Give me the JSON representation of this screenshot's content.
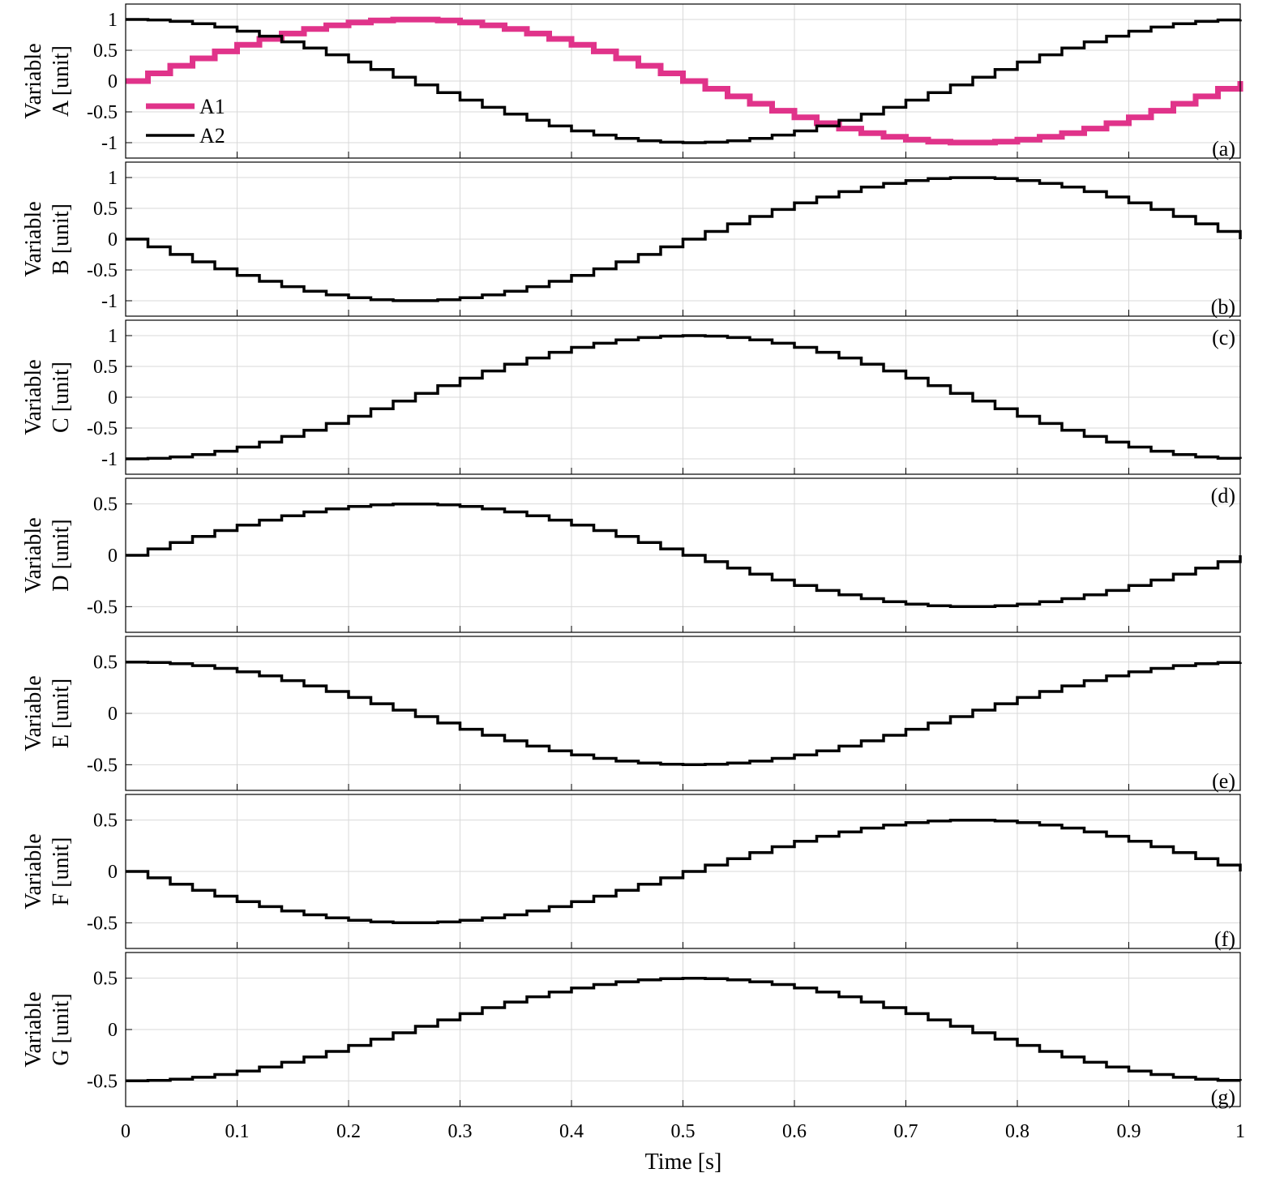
{
  "figure": {
    "xlabel": "Time [s]",
    "x_tick_labels": [
      "0",
      "0.1",
      "0.2",
      "0.3",
      "0.4",
      "0.5",
      "0.6",
      "0.7",
      "0.8",
      "0.9",
      "1"
    ]
  },
  "chart_data": [
    {
      "type": "line",
      "step": true,
      "panel_label": "(a)",
      "ylabel_line1": "Variable",
      "ylabel_line2": "A [unit]",
      "xlim": [
        0,
        1
      ],
      "ylim": [
        -1.25,
        1.25
      ],
      "y_tick_labels": [
        "1",
        "0.5",
        "0",
        "-0.5",
        "-1"
      ],
      "y_tick_values": [
        1,
        0.5,
        0,
        -0.5,
        -1
      ],
      "grid": true,
      "legend_placement": "center-left",
      "series": [
        {
          "name": "A1",
          "color": "#e0338a",
          "amplitude": 1,
          "waveform": "sine",
          "sample_period_s": 0.02
        },
        {
          "name": "A2",
          "color": "#000000",
          "amplitude": 1,
          "waveform": "cosine",
          "sample_period_s": 0.02
        }
      ]
    },
    {
      "type": "line",
      "step": true,
      "panel_label": "(b)",
      "ylabel_line1": "Variable",
      "ylabel_line2": "B [unit]",
      "xlim": [
        0,
        1
      ],
      "ylim": [
        -1.25,
        1.25
      ],
      "y_tick_labels": [
        "1",
        "0.5",
        "0",
        "-0.5",
        "-1"
      ],
      "y_tick_values": [
        1,
        0.5,
        0,
        -0.5,
        -1
      ],
      "grid": true,
      "series": [
        {
          "color": "#000000",
          "amplitude": 1,
          "waveform": "negative sine",
          "sample_period_s": 0.02
        }
      ]
    },
    {
      "type": "line",
      "step": true,
      "panel_label": "(c)",
      "ylabel_line1": "Variable",
      "ylabel_line2": "C [unit]",
      "xlim": [
        0,
        1
      ],
      "ylim": [
        -1.25,
        1.25
      ],
      "y_tick_labels": [
        "1",
        "0.5",
        "0",
        "-0.5",
        "-1"
      ],
      "y_tick_values": [
        1,
        0.5,
        0,
        -0.5,
        -1
      ],
      "grid": true,
      "series": [
        {
          "color": "#000000",
          "amplitude": 1,
          "waveform": "negative cosine",
          "sample_period_s": 0.02
        }
      ]
    },
    {
      "type": "line",
      "step": true,
      "panel_label": "(d)",
      "ylabel_line1": "Variable",
      "ylabel_line2": "D [unit]",
      "xlim": [
        0,
        1
      ],
      "ylim": [
        -0.75,
        0.75
      ],
      "y_tick_labels": [
        "0.5",
        "0",
        "-0.5"
      ],
      "y_tick_values": [
        0.5,
        0,
        -0.5
      ],
      "grid": true,
      "series": [
        {
          "color": "#000000",
          "amplitude": 0.5,
          "waveform": "sine",
          "sample_period_s": 0.02
        }
      ]
    },
    {
      "type": "line",
      "step": true,
      "panel_label": "(e)",
      "ylabel_line1": "Variable",
      "ylabel_line2": "E [unit]",
      "xlim": [
        0,
        1
      ],
      "ylim": [
        -0.75,
        0.75
      ],
      "y_tick_labels": [
        "0.5",
        "0",
        "-0.5"
      ],
      "y_tick_values": [
        0.5,
        0,
        -0.5
      ],
      "grid": true,
      "series": [
        {
          "color": "#000000",
          "amplitude": 0.5,
          "waveform": "cosine",
          "sample_period_s": 0.02
        }
      ]
    },
    {
      "type": "line",
      "step": true,
      "panel_label": "(f)",
      "ylabel_line1": "Variable",
      "ylabel_line2": "F [unit]",
      "xlim": [
        0,
        1
      ],
      "ylim": [
        -0.75,
        0.75
      ],
      "y_tick_labels": [
        "0.5",
        "0",
        "-0.5"
      ],
      "y_tick_values": [
        0.5,
        0,
        -0.5
      ],
      "grid": true,
      "series": [
        {
          "color": "#000000",
          "amplitude": 0.5,
          "waveform": "negative sine",
          "sample_period_s": 0.02
        }
      ]
    },
    {
      "type": "line",
      "step": true,
      "panel_label": "(g)",
      "ylabel_line1": "Variable",
      "ylabel_line2": "G [unit]",
      "xlim": [
        0,
        1
      ],
      "ylim": [
        -0.75,
        0.75
      ],
      "y_tick_labels": [
        "0.5",
        "0",
        "-0.5"
      ],
      "y_tick_values": [
        0.5,
        0,
        -0.5
      ],
      "grid": true,
      "series": [
        {
          "color": "#000000",
          "amplitude": 0.5,
          "waveform": "negative cosine",
          "sample_period_s": 0.02
        }
      ]
    }
  ]
}
